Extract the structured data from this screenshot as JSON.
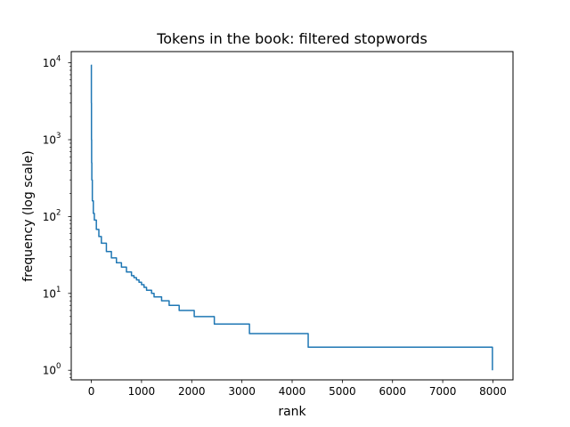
{
  "chart_data": {
    "type": "line",
    "title": "Tokens in the book: filtered stopwords",
    "xlabel": "rank",
    "ylabel": "frequency (log scale)",
    "yscale": "log",
    "xlim": [
      -400,
      8400
    ],
    "ylim": [
      0.75,
      14000
    ],
    "xticks": [
      0,
      1000,
      2000,
      3000,
      4000,
      5000,
      6000,
      7000,
      8000
    ],
    "xtick_labels": [
      "0",
      "1000",
      "2000",
      "3000",
      "4000",
      "5000",
      "6000",
      "7000",
      "8000"
    ],
    "yticks": [
      1,
      10,
      100,
      1000,
      10000
    ],
    "ytick_labels": [
      "10",
      "10",
      "10",
      "10",
      "10"
    ],
    "ytick_exponents": [
      "0",
      "1",
      "2",
      "3",
      "4"
    ],
    "grid": false,
    "color": "#1f77b4",
    "series": [
      {
        "x": [
          0,
          1,
          3,
          6,
          10,
          20,
          40,
          60,
          100,
          150,
          200,
          300,
          400,
          500,
          600,
          700,
          800,
          850,
          900,
          950,
          1000,
          1050,
          1100,
          1200,
          1250,
          1300,
          1400,
          1550,
          1750,
          2050,
          2450,
          3150,
          4320,
          7990
        ],
        "y": [
          9400,
          3000,
          1000,
          500,
          300,
          160,
          110,
          90,
          68,
          55,
          45,
          35,
          29,
          25,
          22,
          19,
          17,
          16,
          15,
          14,
          13,
          12,
          11,
          10,
          9,
          9,
          8,
          7,
          6,
          5,
          4,
          3,
          2,
          1
        ]
      }
    ]
  }
}
